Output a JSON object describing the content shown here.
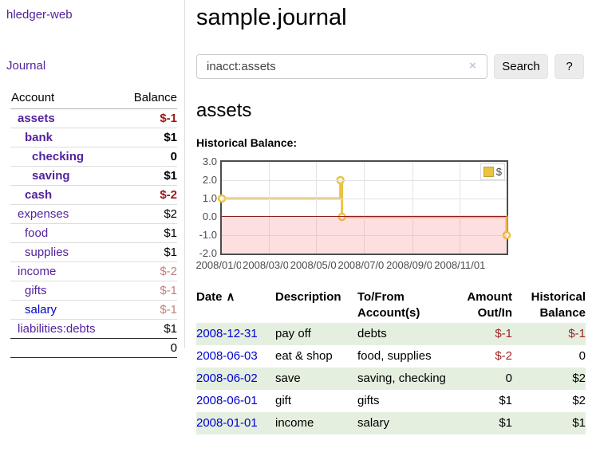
{
  "colors": {
    "link_purple": "#52239c",
    "link_blue": "#0000d0",
    "negative_strong": "#9e1616",
    "negative_soft": "#c47f7f",
    "row_stripe_green": "#e4efe0",
    "chart_line_gold": "#edc240",
    "chart_negative_fill": "#f9dcdc",
    "chart_zero_line": "#8f1d1d"
  },
  "sidebar": {
    "brand": "hledger-web",
    "journal_link": "Journal",
    "accounts_table": {
      "headers": {
        "account": "Account",
        "balance": "Balance"
      },
      "rows": [
        {
          "name": "assets",
          "balance": "$-1",
          "indent": 1,
          "bold": true
        },
        {
          "name": "bank",
          "balance": "$1",
          "indent": 2,
          "bold": true
        },
        {
          "name": "checking",
          "balance": "0",
          "indent": 3,
          "bold": true
        },
        {
          "name": "saving",
          "balance": "$1",
          "indent": 3,
          "bold": true
        },
        {
          "name": "cash",
          "balance": "$-2",
          "indent": 2,
          "bold": true
        },
        {
          "name": "expenses",
          "balance": "$2",
          "indent": 1
        },
        {
          "name": "food",
          "balance": "$1",
          "indent": 2
        },
        {
          "name": "supplies",
          "balance": "$1",
          "indent": 2
        },
        {
          "name": "income",
          "balance": "$-2",
          "indent": 1
        },
        {
          "name": "gifts",
          "balance": "$-1",
          "indent": 2
        },
        {
          "name": "salary",
          "balance": "$-1",
          "indent": 2,
          "blue": true
        },
        {
          "name": "liabilities:debts",
          "balance": "$1",
          "indent": 1
        }
      ],
      "total": "0"
    }
  },
  "header": {
    "title": "sample.journal"
  },
  "search": {
    "value": "inacct:assets",
    "clear_icon": "×",
    "search_label": "Search",
    "help_label": "?"
  },
  "account_page": {
    "title": "assets",
    "chart_heading": "Historical Balance:"
  },
  "chart_data": {
    "type": "line",
    "step": true,
    "title": "Historical Balance:",
    "series": [
      {
        "name": "$",
        "color": "#edc240",
        "points": [
          {
            "date": "2008-01-01",
            "value": 1
          },
          {
            "date": "2008-06-01",
            "value": 2
          },
          {
            "date": "2008-06-03",
            "value": 0
          },
          {
            "date": "2008-12-31",
            "value": -1
          }
        ]
      }
    ],
    "x_range": [
      "2008-01-01",
      "2008-12-31"
    ],
    "x_ticks": [
      "2008/01/01",
      "2008/03/01",
      "2008/05/01",
      "2008/07/01",
      "2008/09/01",
      "2008/11/01"
    ],
    "y_ticks": [
      "3.0",
      "2.0",
      "1.0",
      "0.0",
      "-1.0",
      "-2.0"
    ],
    "ylim": [
      -2,
      3
    ],
    "grid": true,
    "negative_region_shaded": true,
    "legend": {
      "label": "$",
      "position": "top-right"
    }
  },
  "register_table": {
    "headers": {
      "date": "Date",
      "sort_indicator": "∧",
      "description": "Description",
      "account": "To/From Account(s)",
      "amount": "Amount Out/In",
      "balance": "Historical Balance"
    },
    "rows": [
      {
        "date": "2008-12-31",
        "description": "pay off",
        "account": "debts",
        "amount": "$-1",
        "balance": "$-1"
      },
      {
        "date": "2008-06-03",
        "description": "eat & shop",
        "account": "food, supplies",
        "amount": "$-2",
        "balance": "0"
      },
      {
        "date": "2008-06-02",
        "description": "save",
        "account": "saving, checking",
        "amount": "0",
        "balance": "$2"
      },
      {
        "date": "2008-06-01",
        "description": "gift",
        "account": "gifts",
        "amount": "$1",
        "balance": "$2"
      },
      {
        "date": "2008-01-01",
        "description": "income",
        "account": "salary",
        "amount": "$1",
        "balance": "$1"
      }
    ]
  }
}
